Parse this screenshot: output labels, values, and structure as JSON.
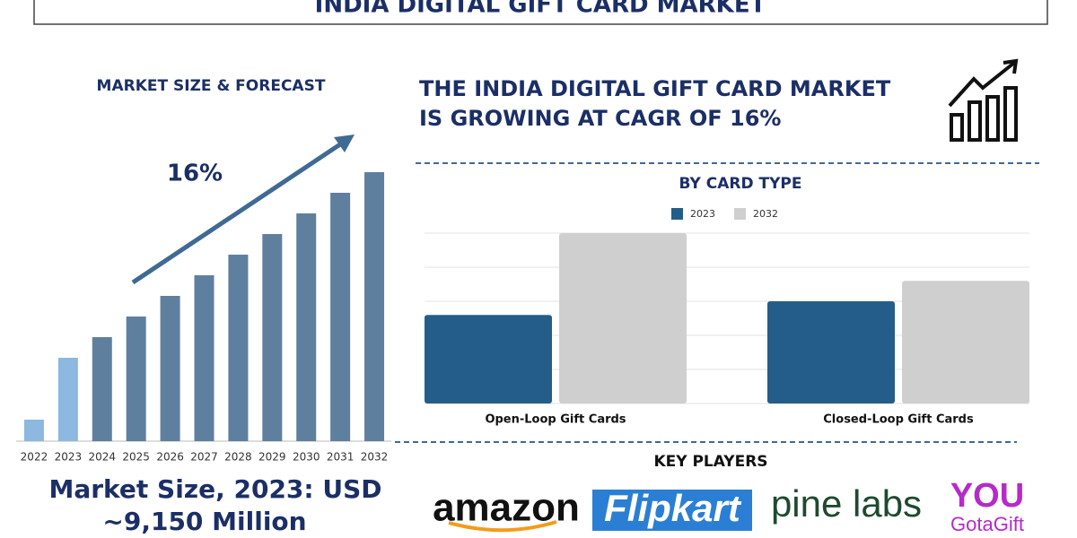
{
  "header": {
    "title": "INDIA DIGITAL GIFT CARD MARKET"
  },
  "headline": {
    "lines": [
      "THE INDIA DIGITAL GIFT CARD MARKET",
      "IS GROWING AT CAGR OF 16%"
    ]
  },
  "market_size": {
    "lines": [
      "Market Size, 2023: USD",
      "~9,150 Million"
    ]
  },
  "key_players": {
    "title": "KEY PLAYERS",
    "logos": [
      "amazon",
      "Flipkart",
      "pine labs",
      "YOU",
      "GotaGift"
    ]
  },
  "chart_data": [
    {
      "type": "bar",
      "title": "MARKET SIZE & FORECAST",
      "annotation": "16%",
      "categories": [
        "2022",
        "2023",
        "2024",
        "2025",
        "2026",
        "2027",
        "2028",
        "2029",
        "2030",
        "2031",
        "2032"
      ],
      "values": [
        24,
        93,
        116,
        139,
        162,
        185,
        208,
        231,
        254,
        277,
        300
      ],
      "colors": [
        "#8db8e0",
        "#8db8e0",
        "#5f7f9f",
        "#5f7f9f",
        "#5f7f9f",
        "#5f7f9f",
        "#5f7f9f",
        "#5f7f9f",
        "#5f7f9f",
        "#5f7f9f",
        "#5f7f9f"
      ],
      "ylim": [
        0,
        300
      ]
    },
    {
      "type": "grouped-bar",
      "title": "BY CARD TYPE",
      "categories": [
        "Open-Loop Gift Cards",
        "Closed-Loop Gift Cards"
      ],
      "series": [
        {
          "name": "2023",
          "color": "#255d8a",
          "values": [
            2.6,
            3.0
          ]
        },
        {
          "name": "2032",
          "color": "#cfcfcf",
          "values": [
            5.0,
            3.6
          ]
        }
      ],
      "ylim": [
        0,
        5
      ],
      "yticks": [
        0,
        1,
        2,
        3,
        4,
        5
      ],
      "grid": true
    }
  ]
}
